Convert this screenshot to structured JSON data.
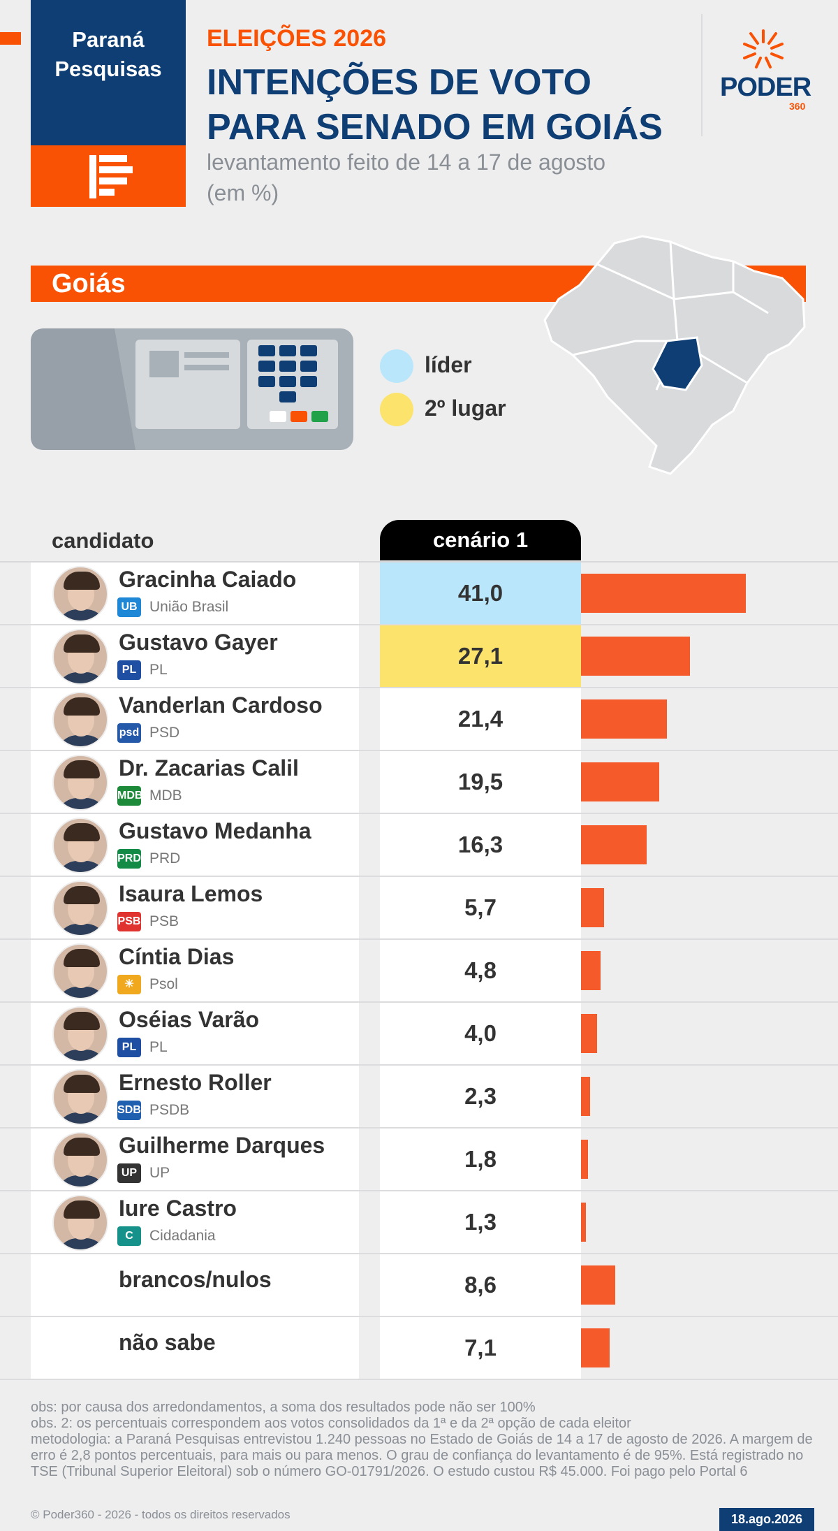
{
  "header": {
    "brand_line1": "Paraná",
    "brand_line2": "Pesquisas",
    "eyebrow": "ELEIÇÕES 2026",
    "title_line1": "INTENÇÕES DE VOTO",
    "title_line2": "PARA SENADO EM GOIÁS",
    "subtitle_line1": "levantamento feito de 14 a 17 de agosto",
    "subtitle_line2": "(em %)",
    "logo_text": "PODER",
    "logo_sub": "360"
  },
  "region": {
    "label": "Goiás"
  },
  "legend": {
    "leader_label": "líder",
    "second_label": "2º lugar",
    "leader_color": "#b9e6fa",
    "second_color": "#fbe36c"
  },
  "table": {
    "candidate_header": "candidato",
    "scenario_header": "cenário 1"
  },
  "chart_data": {
    "type": "bar",
    "orientation": "horizontal",
    "series_name": "cenário 1",
    "bar_color": "#f55b2a",
    "rows": [
      {
        "name": "Gracinha Caiado",
        "party": "União Brasil",
        "value": 41.0,
        "label": "41,0",
        "highlight": "lead",
        "party_color": "#1e88d6",
        "party_abbr": "UB"
      },
      {
        "name": "Gustavo Gayer",
        "party": "PL",
        "value": 27.1,
        "label": "27,1",
        "highlight": "second",
        "party_color": "#1f4fa3",
        "party_abbr": "PL"
      },
      {
        "name": "Vanderlan Cardoso",
        "party": "PSD",
        "value": 21.4,
        "label": "21,4",
        "highlight": "",
        "party_color": "#2458a8",
        "party_abbr": "psd"
      },
      {
        "name": "Dr. Zacarias Calil",
        "party": "MDB",
        "value": 19.5,
        "label": "19,5",
        "highlight": "",
        "party_color": "#1d8a3a",
        "party_abbr": "MDB"
      },
      {
        "name": "Gustavo Medanha",
        "party": "PRD",
        "value": 16.3,
        "label": "16,3",
        "highlight": "",
        "party_color": "#138a45",
        "party_abbr": "PRD"
      },
      {
        "name": "Isaura Lemos",
        "party": "PSB",
        "value": 5.7,
        "label": "5,7",
        "highlight": "",
        "party_color": "#e0322f",
        "party_abbr": "PSB"
      },
      {
        "name": "Cíntia Dias",
        "party": "Psol",
        "value": 4.8,
        "label": "4,8",
        "highlight": "",
        "party_color": "#f0a91e",
        "party_abbr": "☀"
      },
      {
        "name": "Oséias Varão",
        "party": "PL",
        "value": 4.0,
        "label": "4,0",
        "highlight": "",
        "party_color": "#1f4fa3",
        "party_abbr": "PL"
      },
      {
        "name": "Ernesto Roller",
        "party": "PSDB",
        "value": 2.3,
        "label": "2,3",
        "highlight": "",
        "party_color": "#1f5fb0",
        "party_abbr": "SDB"
      },
      {
        "name": "Guilherme Darques",
        "party": "UP",
        "value": 1.8,
        "label": "1,8",
        "highlight": "",
        "party_color": "#333333",
        "party_abbr": "UP"
      },
      {
        "name": "Iure Castro",
        "party": "Cidadania",
        "value": 1.3,
        "label": "1,3",
        "highlight": "",
        "party_color": "#16928a",
        "party_abbr": "C"
      },
      {
        "name": "brancos/nulos",
        "party": "",
        "value": 8.6,
        "label": "8,6",
        "highlight": "",
        "party_color": "",
        "party_abbr": ""
      },
      {
        "name": "não sabe",
        "party": "",
        "value": 7.1,
        "label": "7,1",
        "highlight": "",
        "party_color": "",
        "party_abbr": ""
      }
    ]
  },
  "footer": {
    "note1": "obs: por causa dos arredondamentos, a soma dos resultados pode não ser 100%",
    "note2": "obs. 2: os percentuais correspondem aos votos consolidados da 1ª e da 2ª opção de cada eleitor",
    "methodology": "metodologia: a Paraná Pesquisas entrevistou 1.240 pessoas no Estado de Goiás de 14 a 17 de agosto de 2026. A margem de erro é 2,8 pontos percentuais, para mais ou para menos. O grau de confiança do levantamento é de 95%. Está registrado no TSE (Tribunal Superior Eleitoral) sob o número GO-01791/2026. O estudo custou R$ 45.000. Foi pago pelo Portal 6",
    "copyright": "© Poder360 - 2026 - todos os direitos reservados",
    "date": "18.ago.2026"
  }
}
